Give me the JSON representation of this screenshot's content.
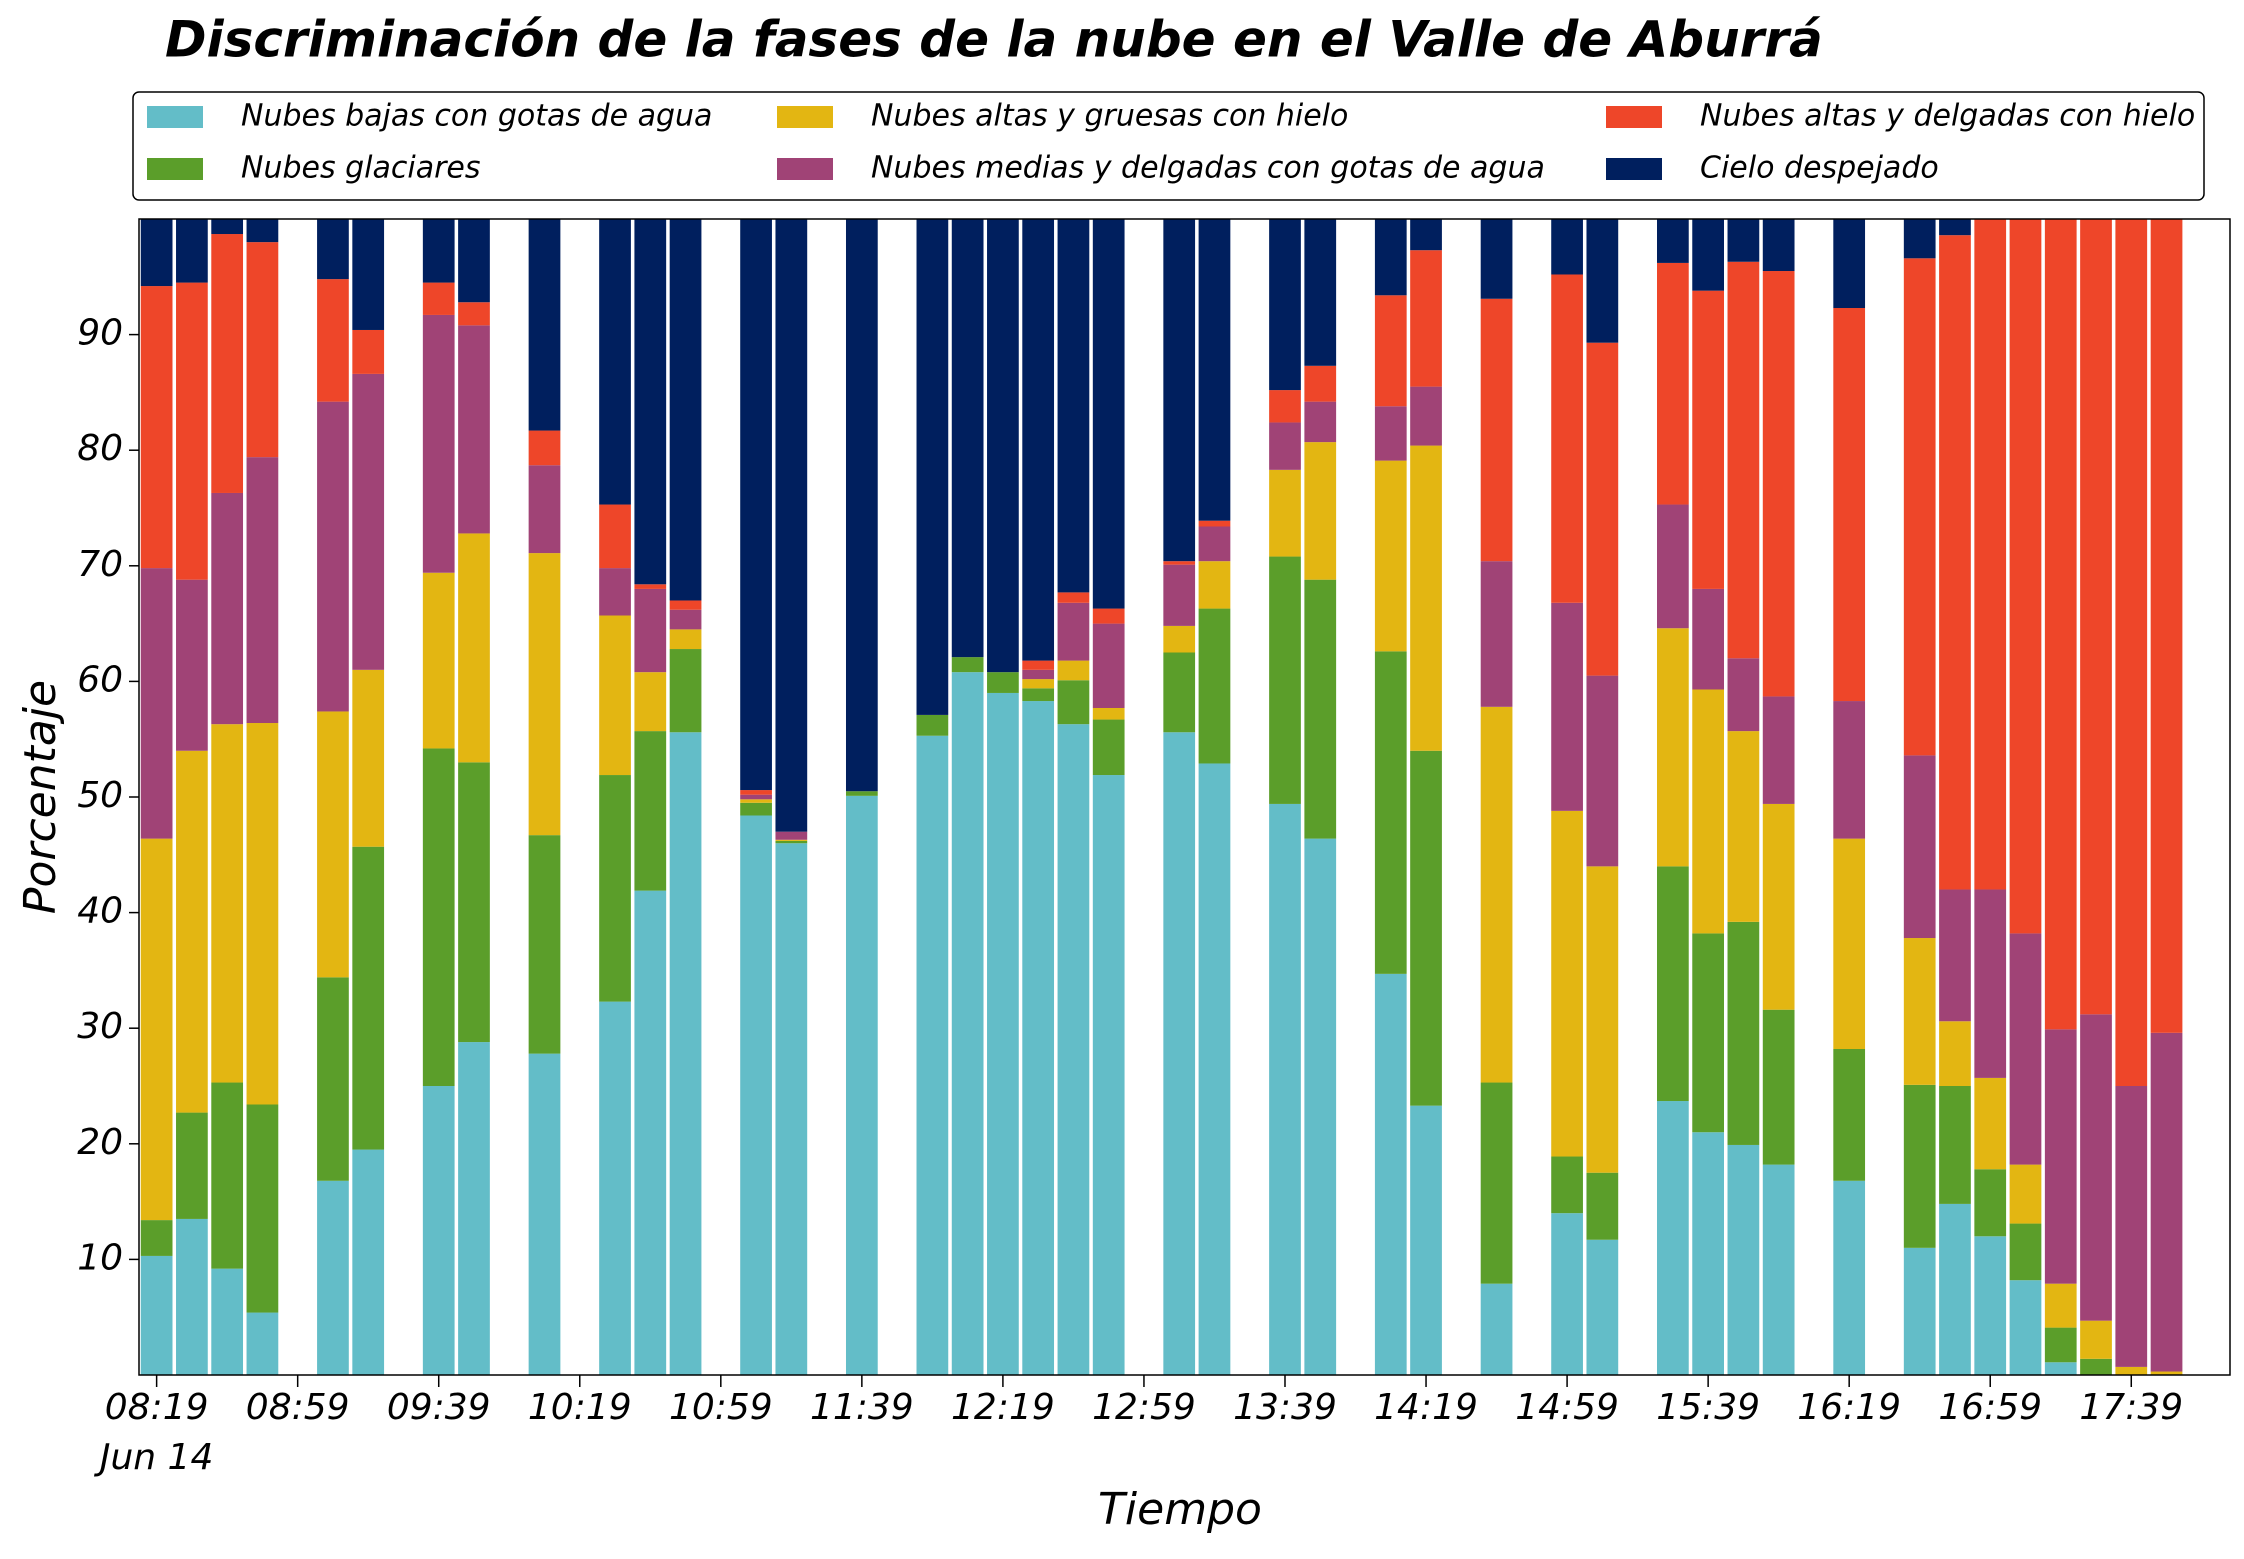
{
  "chart_data": {
    "type": "bar",
    "stacked": true,
    "title": "Discriminación de la fases de la nube en el Valle de Aburrá",
    "xlabel": "Tiempo",
    "ylabel": "Porcentaje",
    "x": [
      "08:19",
      "08:29",
      "08:39",
      "08:49",
      "09:09",
      "09:19",
      "09:39",
      "09:49",
      "10:09",
      "10:29",
      "10:39",
      "10:49",
      "11:09",
      "11:19",
      "11:39",
      "11:59",
      "12:09",
      "12:19",
      "12:29",
      "12:39",
      "12:49",
      "13:09",
      "13:19",
      "13:39",
      "13:49",
      "14:09",
      "14:19",
      "14:39",
      "14:59",
      "15:09",
      "15:29",
      "15:39",
      "15:49",
      "15:59",
      "16:19",
      "16:39",
      "16:49",
      "16:59",
      "17:09",
      "17:19",
      "17:29",
      "17:39",
      "17:49"
    ],
    "xlim": [
      "08:14",
      "18:07"
    ],
    "xticks": [
      "08:19",
      "08:59",
      "09:39",
      "10:19",
      "10:59",
      "11:39",
      "12:19",
      "12:59",
      "13:39",
      "14:19",
      "14:59",
      "15:39",
      "16:19",
      "16:59",
      "17:39"
    ],
    "xtick_sublabel": "Jun 14",
    "ylim": [
      0,
      100
    ],
    "yticks": [
      10,
      20,
      30,
      40,
      50,
      60,
      70,
      80,
      90
    ],
    "grid": false,
    "legend": "top",
    "series": [
      {
        "name": "Nubes bajas con gotas de agua",
        "color": "#63bdc8",
        "values": [
          10.3,
          13.5,
          9.2,
          5.4,
          16.8,
          19.5,
          25.0,
          28.8,
          27.8,
          32.3,
          41.9,
          55.6,
          48.4,
          46.0,
          50.1,
          55.3,
          60.8,
          59.0,
          58.3,
          56.3,
          51.9,
          55.6,
          52.9,
          49.4,
          46.4,
          34.7,
          23.3,
          7.9,
          14.0,
          11.7,
          23.7,
          21.0,
          19.9,
          18.2,
          16.8,
          11.0,
          14.8,
          12.0,
          8.2,
          1.1,
          0,
          0,
          0
        ]
      },
      {
        "name": "Nubes glaciares",
        "color": "#5b9e2a",
        "values": [
          3.1,
          9.2,
          16.1,
          18.0,
          17.6,
          26.2,
          29.2,
          24.2,
          18.9,
          19.6,
          13.8,
          7.2,
          1.1,
          0.2,
          0.4,
          1.8,
          1.3,
          1.8,
          1.1,
          3.8,
          4.8,
          6.9,
          13.4,
          21.4,
          22.4,
          27.9,
          30.7,
          17.4,
          4.9,
          5.8,
          20.3,
          17.2,
          19.3,
          13.4,
          11.4,
          14.1,
          10.2,
          5.8,
          4.9,
          3.0,
          1.4,
          0,
          0
        ]
      },
      {
        "name": "Nubes altas y gruesas con hielo",
        "color": "#e3b612",
        "values": [
          33.0,
          31.3,
          31.0,
          33.0,
          23.0,
          15.3,
          15.2,
          19.8,
          24.4,
          13.8,
          5.1,
          1.7,
          0.3,
          0.1,
          0,
          0,
          0,
          0,
          0.8,
          1.7,
          1.0,
          2.3,
          4.1,
          7.5,
          11.9,
          16.5,
          26.4,
          32.5,
          29.9,
          26.5,
          20.6,
          21.1,
          16.5,
          17.8,
          18.2,
          12.7,
          5.6,
          7.9,
          5.1,
          3.8,
          3.3,
          0.7,
          0.3
        ]
      },
      {
        "name": "Nubes medias y delgadas con gotas de agua",
        "color": "#a04376",
        "values": [
          23.4,
          14.8,
          20.0,
          23.0,
          26.8,
          25.6,
          22.3,
          18.0,
          7.6,
          4.1,
          7.2,
          1.7,
          0.4,
          0.7,
          0,
          0,
          0,
          0,
          0.8,
          5.0,
          7.3,
          5.3,
          3.0,
          4.1,
          3.5,
          4.7,
          5.1,
          12.6,
          18.0,
          16.5,
          10.7,
          8.7,
          6.3,
          9.3,
          11.9,
          15.8,
          11.4,
          16.3,
          20.0,
          22.0,
          26.5,
          24.3,
          29.3
        ]
      },
      {
        "name": "Nubes altas y delgadas con hielo",
        "color": "#ee4629",
        "values": [
          24.4,
          25.7,
          22.4,
          18.6,
          10.6,
          3.8,
          2.8,
          2.0,
          3.0,
          5.5,
          0.4,
          0.8,
          0.4,
          0,
          0,
          0,
          0,
          0,
          0.8,
          0.9,
          1.3,
          0.3,
          0.5,
          2.8,
          3.1,
          9.6,
          11.8,
          22.7,
          28.4,
          28.8,
          20.9,
          25.8,
          34.3,
          36.8,
          34.0,
          43.0,
          56.6,
          58.0,
          61.8,
          70.1,
          68.8,
          75.0,
          70.4
        ]
      },
      {
        "name": "Cielo despejado",
        "color": "#001f5e",
        "values": [
          5.8,
          5.5,
          1.3,
          2.0,
          5.2,
          9.6,
          5.5,
          7.2,
          18.3,
          24.7,
          31.6,
          33.0,
          49.4,
          53.0,
          49.5,
          42.9,
          37.9,
          39.2,
          38.2,
          32.3,
          33.7,
          29.6,
          26.1,
          14.8,
          12.7,
          6.6,
          2.7,
          6.9,
          4.8,
          10.7,
          3.8,
          6.2,
          3.7,
          4.5,
          7.7,
          3.4,
          1.4,
          0,
          0,
          0,
          0,
          0,
          0
        ]
      }
    ]
  }
}
